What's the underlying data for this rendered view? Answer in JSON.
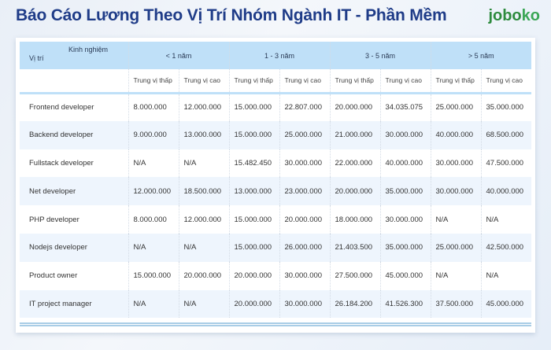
{
  "title": "Báo Cáo Lương Theo Vị Trí Nhóm Ngành IT - Phần Mềm",
  "logo": "joboko",
  "header": {
    "experience_label": "Kinh nghiệm",
    "position_label": "Vị trí",
    "groups": [
      "< 1 năm",
      "1 - 3 năm",
      "3 - 5 năm",
      "> 5 năm"
    ],
    "sub": [
      "Trung vị thấp",
      "Trung vị cao",
      "Trung vị thấp",
      "Trung vị cao",
      "Trung vị thấp",
      "Trung vị cao",
      "Trung vị thấp",
      "Trung vị cao"
    ]
  },
  "rows": [
    {
      "position": "Frontend developer",
      "values": [
        "8.000.000",
        "12.000.000",
        "15.000.000",
        "22.807.000",
        "20.000.000",
        "34.035.075",
        "25.000.000",
        "35.000.000"
      ]
    },
    {
      "position": "Backend developer",
      "values": [
        "9.000.000",
        "13.000.000",
        "15.000.000",
        "25.000.000",
        "21.000.000",
        "30.000.000",
        "40.000.000",
        "68.500.000"
      ]
    },
    {
      "position": "Fullstack developer",
      "values": [
        "N/A",
        "N/A",
        "15.482.450",
        "30.000.000",
        "22.000.000",
        "40.000.000",
        "30.000.000",
        "47.500.000"
      ]
    },
    {
      "position": "Net developer",
      "values": [
        "12.000.000",
        "18.500.000",
        "13.000.000",
        "23.000.000",
        "20.000.000",
        "35.000.000",
        "30.000.000",
        "40.000.000"
      ]
    },
    {
      "position": "PHP developer",
      "values": [
        "8.000.000",
        "12.000.000",
        "15.000.000",
        "20.000.000",
        "18.000.000",
        "30.000.000",
        "N/A",
        "N/A"
      ]
    },
    {
      "position": "Nodejs developer",
      "values": [
        "N/A",
        "N/A",
        "15.000.000",
        "26.000.000",
        "21.403.500",
        "35.000.000",
        "25.000.000",
        "42.500.000"
      ]
    },
    {
      "position": "Product owner",
      "values": [
        "15.000.000",
        "20.000.000",
        "20.000.000",
        "30.000.000",
        "27.500.000",
        "45.000.000",
        "N/A",
        "N/A"
      ]
    },
    {
      "position": "IT project manager",
      "values": [
        "N/A",
        "N/A",
        "20.000.000",
        "30.000.000",
        "26.184.200",
        "41.526.300",
        "37.500.000",
        "45.000.000"
      ]
    }
  ]
}
